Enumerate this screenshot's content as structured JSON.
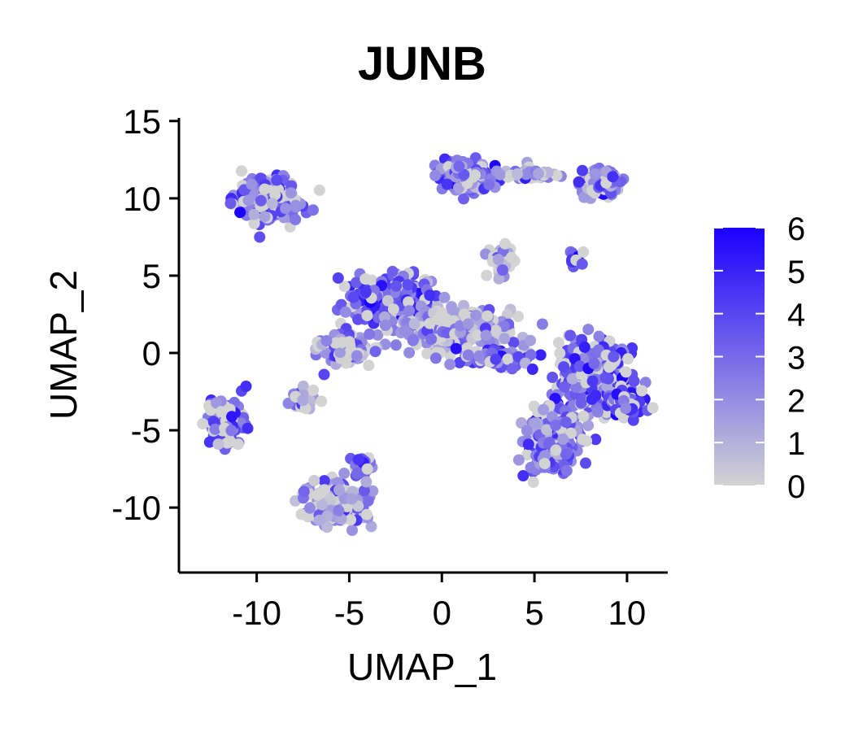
{
  "chart_data": {
    "type": "scatter",
    "title": "JUNB",
    "xlabel": "UMAP_1",
    "ylabel": "UMAP_2",
    "xlim": [
      -14.2,
      12.2
    ],
    "ylim": [
      -14.2,
      15.2
    ],
    "xticks": [
      -10,
      -5,
      0,
      5,
      10
    ],
    "yticks": [
      15,
      10,
      5,
      0,
      -5,
      -10
    ],
    "xtick_labels": [
      "-10",
      "-5",
      "0",
      "5",
      "10"
    ],
    "ytick_labels": [
      "15",
      "10",
      "5",
      "0",
      "-5",
      "-10"
    ],
    "grid": false,
    "legend": {
      "type": "colorbar",
      "placement": "right",
      "min": 0,
      "max": 6,
      "ticks": [
        "0",
        "1",
        "2",
        "3",
        "4",
        "5",
        "6"
      ],
      "low_color": "#d3d3d3",
      "high_color": "#1a00ff"
    },
    "colors": {
      "low": "#d3d3d3",
      "high": "#1a00ff"
    },
    "clusters": [
      {
        "cx": -9.3,
        "cy": 9.9,
        "sx": 1.35,
        "sy": 1.3,
        "n": 240,
        "mean": 2.8
      },
      {
        "cx": 1.3,
        "cy": 11.6,
        "sx": 1.0,
        "sy": 0.8,
        "n": 160,
        "mean": 2.6
      },
      {
        "cx": 4.8,
        "cy": 11.6,
        "sx": 1.3,
        "sy": 0.3,
        "n": 50,
        "mean": 1.6
      },
      {
        "cx": 8.5,
        "cy": 11.0,
        "sx": 0.9,
        "sy": 0.7,
        "n": 90,
        "mean": 2.7
      },
      {
        "cx": 3.2,
        "cy": 5.8,
        "sx": 0.5,
        "sy": 0.8,
        "n": 55,
        "mean": 0.3
      },
      {
        "cx": 7.2,
        "cy": 6.0,
        "sx": 0.3,
        "sy": 0.4,
        "n": 14,
        "mean": 3.6
      },
      {
        "cx": -2.8,
        "cy": 3.6,
        "sx": 2.0,
        "sy": 1.1,
        "n": 290,
        "mean": 3.5
      },
      {
        "cx": 0.5,
        "cy": 1.6,
        "sx": 2.6,
        "sy": 1.1,
        "n": 300,
        "mean": 1.6
      },
      {
        "cx": -5.0,
        "cy": 0.3,
        "sx": 1.2,
        "sy": 0.9,
        "n": 90,
        "mean": 2.4
      },
      {
        "cx": 2.8,
        "cy": -0.3,
        "sx": 1.5,
        "sy": 0.5,
        "n": 80,
        "mean": 3.2
      },
      {
        "cx": -7.5,
        "cy": -3.0,
        "sx": 0.6,
        "sy": 0.6,
        "n": 30,
        "mean": 2.0
      },
      {
        "cx": -11.7,
        "cy": -4.6,
        "sx": 0.75,
        "sy": 1.25,
        "n": 120,
        "mean": 2.9
      },
      {
        "cx": -5.7,
        "cy": -9.6,
        "sx": 1.3,
        "sy": 1.15,
        "n": 190,
        "mean": 1.8
      },
      {
        "cx": -4.4,
        "cy": -7.3,
        "sx": 0.5,
        "sy": 0.6,
        "n": 30,
        "mean": 2.6
      },
      {
        "cx": 8.2,
        "cy": -1.6,
        "sx": 1.55,
        "sy": 1.8,
        "n": 330,
        "mean": 3.3
      },
      {
        "cx": 6.0,
        "cy": -5.8,
        "sx": 1.1,
        "sy": 1.5,
        "n": 260,
        "mean": 2.9
      },
      {
        "cx": 10.2,
        "cy": -3.3,
        "sx": 0.7,
        "sy": 0.8,
        "n": 80,
        "mean": 3.8
      }
    ]
  }
}
